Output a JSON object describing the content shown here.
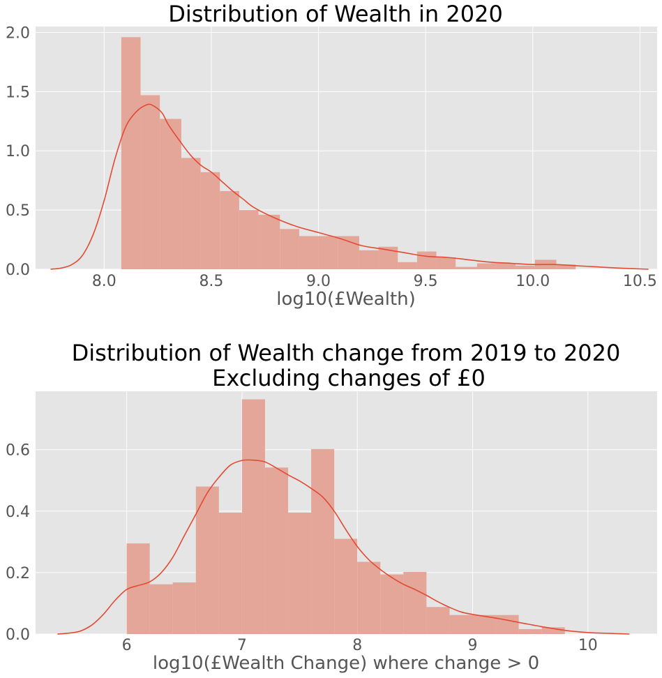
{
  "chart_data": [
    {
      "type": "histogram",
      "title": "Distribution of Wealth in 2020",
      "xlabel": "log10(£Wealth)",
      "ylabel": "",
      "xlim": [
        7.68,
        10.58
      ],
      "ylim": [
        0,
        2.05
      ],
      "xticks": [
        "8.0",
        "8.5",
        "9.0",
        "9.5",
        "10.0",
        "10.5"
      ],
      "xtick_values": [
        8.0,
        8.5,
        9.0,
        9.5,
        10.0,
        10.5
      ],
      "yticks": [
        "0.0",
        "0.5",
        "1.0",
        "1.5",
        "2.0"
      ],
      "ytick_values": [
        0.0,
        0.5,
        1.0,
        1.5,
        2.0
      ],
      "grid": true,
      "colors": {
        "bars": "#e5a69a",
        "kde": "#e24a33",
        "background": "#e5e5e5",
        "grid": "#ffffff"
      },
      "bins": [
        {
          "x0": 8.08,
          "x1": 8.17,
          "y": 1.96
        },
        {
          "x0": 8.17,
          "x1": 8.26,
          "y": 1.47
        },
        {
          "x0": 8.26,
          "x1": 8.36,
          "y": 1.27
        },
        {
          "x0": 8.36,
          "x1": 8.45,
          "y": 0.94
        },
        {
          "x0": 8.45,
          "x1": 8.54,
          "y": 0.82
        },
        {
          "x0": 8.54,
          "x1": 8.63,
          "y": 0.66
        },
        {
          "x0": 8.63,
          "x1": 8.72,
          "y": 0.5
        },
        {
          "x0": 8.72,
          "x1": 8.82,
          "y": 0.46
        },
        {
          "x0": 8.82,
          "x1": 8.91,
          "y": 0.34
        },
        {
          "x0": 8.91,
          "x1": 9.0,
          "y": 0.28
        },
        {
          "x0": 9.0,
          "x1": 9.09,
          "y": 0.28
        },
        {
          "x0": 9.09,
          "x1": 9.19,
          "y": 0.28
        },
        {
          "x0": 9.19,
          "x1": 9.28,
          "y": 0.16
        },
        {
          "x0": 9.28,
          "x1": 9.37,
          "y": 0.19
        },
        {
          "x0": 9.37,
          "x1": 9.46,
          "y": 0.06
        },
        {
          "x0": 9.46,
          "x1": 9.55,
          "y": 0.15
        },
        {
          "x0": 9.55,
          "x1": 9.64,
          "y": 0.1
        },
        {
          "x0": 9.64,
          "x1": 9.74,
          "y": 0.02
        },
        {
          "x0": 9.74,
          "x1": 9.83,
          "y": 0.05
        },
        {
          "x0": 9.83,
          "x1": 9.92,
          "y": 0.05
        },
        {
          "x0": 9.92,
          "x1": 10.01,
          "y": 0.03
        },
        {
          "x0": 10.01,
          "x1": 10.11,
          "y": 0.08
        },
        {
          "x0": 10.11,
          "x1": 10.2,
          "y": 0.04
        }
      ],
      "kde": {
        "x": [
          7.75,
          7.8,
          7.85,
          7.9,
          7.95,
          8.0,
          8.05,
          8.1,
          8.15,
          8.2,
          8.23,
          8.27,
          8.3,
          8.35,
          8.4,
          8.45,
          8.5,
          8.55,
          8.6,
          8.65,
          8.7,
          8.8,
          8.9,
          9.0,
          9.1,
          9.2,
          9.3,
          9.4,
          9.5,
          9.6,
          9.7,
          9.8,
          9.9,
          10.0,
          10.1,
          10.2,
          10.3,
          10.4,
          10.54
        ],
        "y": [
          0.0,
          0.01,
          0.04,
          0.12,
          0.3,
          0.58,
          0.93,
          1.2,
          1.33,
          1.39,
          1.38,
          1.32,
          1.22,
          1.09,
          0.97,
          0.88,
          0.82,
          0.74,
          0.66,
          0.59,
          0.52,
          0.43,
          0.36,
          0.31,
          0.26,
          0.2,
          0.17,
          0.14,
          0.11,
          0.1,
          0.08,
          0.06,
          0.05,
          0.04,
          0.04,
          0.03,
          0.02,
          0.01,
          0.0
        ]
      }
    },
    {
      "type": "histogram",
      "title": "Distribution of Wealth change from 2019 to 2020",
      "subtitle": "Excluding changes of £0",
      "xlabel": "log10(£Wealth Change) where change > 0",
      "ylabel": "",
      "xlim": [
        5.21,
        10.6
      ],
      "ylim": [
        0,
        0.79
      ],
      "xticks": [
        "6",
        "7",
        "8",
        "9",
        "10"
      ],
      "xtick_values": [
        6,
        7,
        8,
        9,
        10
      ],
      "yticks": [
        "0.0",
        "0.2",
        "0.4",
        "0.6"
      ],
      "ytick_values": [
        0.0,
        0.2,
        0.4,
        0.6
      ],
      "grid": true,
      "colors": {
        "bars": "#e5a69a",
        "kde": "#e24a33",
        "background": "#e5e5e5",
        "grid": "#ffffff"
      },
      "bins": [
        {
          "x0": 6.0,
          "x1": 6.2,
          "y": 0.295
        },
        {
          "x0": 6.2,
          "x1": 6.4,
          "y": 0.162
        },
        {
          "x0": 6.4,
          "x1": 6.6,
          "y": 0.168
        },
        {
          "x0": 6.6,
          "x1": 6.8,
          "y": 0.48
        },
        {
          "x0": 6.8,
          "x1": 7.0,
          "y": 0.395
        },
        {
          "x0": 7.0,
          "x1": 7.2,
          "y": 0.764
        },
        {
          "x0": 7.2,
          "x1": 7.4,
          "y": 0.542
        },
        {
          "x0": 7.4,
          "x1": 7.6,
          "y": 0.395
        },
        {
          "x0": 7.6,
          "x1": 7.8,
          "y": 0.602
        },
        {
          "x0": 7.8,
          "x1": 8.0,
          "y": 0.31
        },
        {
          "x0": 8.0,
          "x1": 8.2,
          "y": 0.235
        },
        {
          "x0": 8.2,
          "x1": 8.4,
          "y": 0.194
        },
        {
          "x0": 8.4,
          "x1": 8.6,
          "y": 0.202
        },
        {
          "x0": 8.6,
          "x1": 8.8,
          "y": 0.088
        },
        {
          "x0": 8.8,
          "x1": 9.0,
          "y": 0.062
        },
        {
          "x0": 9.0,
          "x1": 9.2,
          "y": 0.062
        },
        {
          "x0": 9.2,
          "x1": 9.4,
          "y": 0.062
        },
        {
          "x0": 9.4,
          "x1": 9.6,
          "y": 0.016
        },
        {
          "x0": 9.6,
          "x1": 9.8,
          "y": 0.022
        }
      ],
      "kde": {
        "x": [
          5.4,
          5.5,
          5.6,
          5.7,
          5.8,
          5.9,
          6.0,
          6.1,
          6.2,
          6.3,
          6.4,
          6.5,
          6.6,
          6.7,
          6.8,
          6.9,
          7.0,
          7.1,
          7.2,
          7.3,
          7.4,
          7.5,
          7.6,
          7.7,
          7.8,
          7.9,
          8.0,
          8.1,
          8.2,
          8.3,
          8.4,
          8.5,
          8.6,
          8.7,
          8.8,
          8.9,
          9.0,
          9.2,
          9.4,
          9.6,
          9.8,
          10.0,
          10.2,
          10.36
        ],
        "y": [
          0.0,
          0.003,
          0.01,
          0.03,
          0.065,
          0.11,
          0.145,
          0.158,
          0.17,
          0.2,
          0.25,
          0.32,
          0.39,
          0.46,
          0.51,
          0.55,
          0.565,
          0.566,
          0.56,
          0.54,
          0.518,
          0.498,
          0.474,
          0.446,
          0.4,
          0.34,
          0.285,
          0.242,
          0.21,
          0.184,
          0.162,
          0.145,
          0.126,
          0.105,
          0.087,
          0.072,
          0.064,
          0.052,
          0.038,
          0.024,
          0.012,
          0.005,
          0.002,
          0.0
        ]
      }
    }
  ]
}
